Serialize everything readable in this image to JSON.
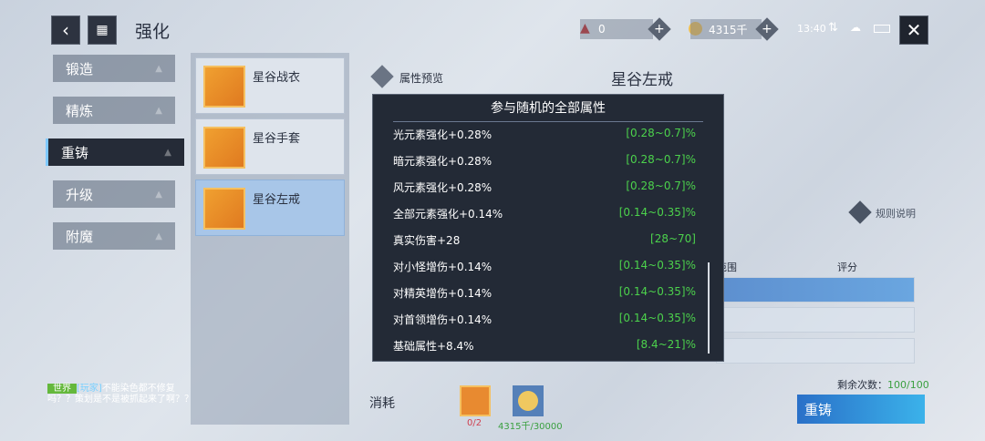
{
  "header": {
    "back_icon": "chevron-left-icon",
    "menu_icon": "grid-icon",
    "title": "强化",
    "gem": {
      "icon": "red-crystal-icon",
      "value": "0"
    },
    "gold": {
      "icon": "gold-coin-icon",
      "value": "4315千"
    },
    "time": "13:40",
    "close_icon": "close-icon"
  },
  "sidebar": {
    "items": [
      {
        "label": "锻造"
      },
      {
        "label": "精炼"
      },
      {
        "label": "重铸",
        "active": true
      },
      {
        "label": "升级"
      },
      {
        "label": "附魔"
      }
    ]
  },
  "equipment": [
    {
      "name": "星谷战衣"
    },
    {
      "name": "星谷手套"
    },
    {
      "name": "星谷左戒",
      "active": true
    }
  ],
  "main": {
    "preview_label": "属性预览",
    "item_name": "星谷左戒",
    "rules_label": "规则说明",
    "col_range": "范围",
    "col_score": "评分",
    "remaining_label": "剩余次数：",
    "remaining_value": "100/100",
    "cost_label": "消耗",
    "cost_items": [
      {
        "icon": "leaf-material-icon",
        "amount": "0/2",
        "color": "#d04050"
      },
      {
        "icon": "gold-coin-icon",
        "amount": "4315千/30000",
        "color": "#3aa040"
      }
    ],
    "reforge_button": "重铸"
  },
  "popup": {
    "title": "参与随机的全部属性",
    "rows": [
      {
        "attr": "光元素强化+0.28%",
        "range": "[0.28~0.7]%"
      },
      {
        "attr": "暗元素强化+0.28%",
        "range": "[0.28~0.7]%"
      },
      {
        "attr": "风元素强化+0.28%",
        "range": "[0.28~0.7]%"
      },
      {
        "attr": "全部元素强化+0.14%",
        "range": "[0.14~0.35]%"
      },
      {
        "attr": "真实伤害+28",
        "range": "[28~70]"
      },
      {
        "attr": "对小怪增伤+0.14%",
        "range": "[0.14~0.35]%"
      },
      {
        "attr": "对精英增伤+0.14%",
        "range": "[0.14~0.35]%"
      },
      {
        "attr": "对首领增伤+0.14%",
        "range": "[0.14~0.35]%"
      },
      {
        "attr": "基础属性+8.4%",
        "range": "[8.4~21]%"
      }
    ]
  },
  "chat": {
    "channel": "世界",
    "sender": "[玩家]",
    "message": "不能染色都不修复吗？？策划是不是被抓起来了啊？？"
  },
  "colors": {
    "accent": "#3bb2ea",
    "green": "#4cd24c",
    "popup_bg": "#232a36"
  }
}
